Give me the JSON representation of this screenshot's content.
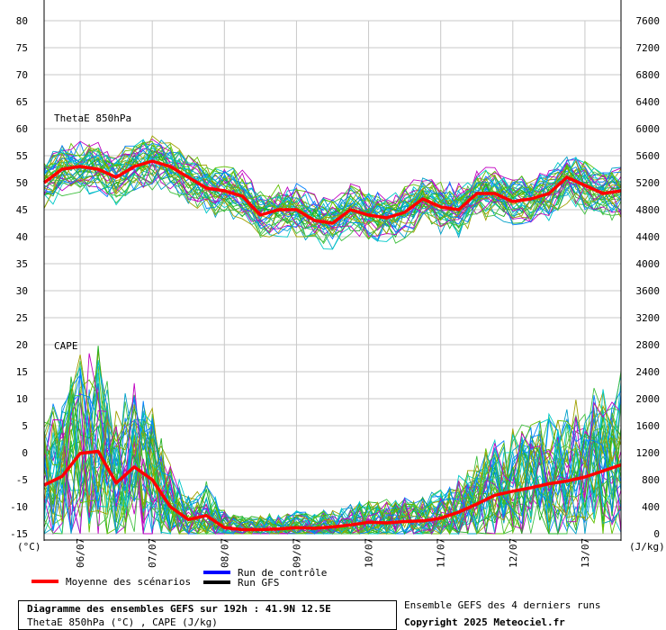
{
  "chart_data": {
    "type": "line",
    "title": "Diagramme des ensembles GEFS sur 192h : 41.9N 12.5E",
    "subtitle": "ThetaE 850hPa (°C) , CAPE (J/kg)",
    "left_axis": {
      "unit": "(°C)",
      "ticks": [
        -15,
        -10,
        -5,
        0,
        5,
        10,
        15,
        20,
        25,
        30,
        35,
        40,
        45,
        50,
        55,
        60,
        65,
        70,
        75,
        80
      ],
      "ylim": [
        -15,
        80
      ]
    },
    "right_axis": {
      "unit": "(J/kg)",
      "ticks": [
        0,
        400,
        800,
        1200,
        1600,
        2000,
        2400,
        2800,
        3200,
        3600,
        4000,
        4400,
        4800,
        5200,
        5600,
        6000,
        6400,
        6800,
        7200,
        7600
      ],
      "ylim": [
        0,
        7600
      ]
    },
    "x_labels": [
      "06/07",
      "07/07",
      "08/07",
      "09/07",
      "10/07",
      "11/07",
      "12/07",
      "13/07"
    ],
    "x_range_h": [
      0,
      192
    ],
    "panel_labels": [
      "ThetaE 850hPa",
      "CAPE"
    ],
    "legend": [
      {
        "name": "Moyenne des scénarios",
        "color": "#ff0000"
      },
      {
        "name": "Run de contrôle",
        "color": "#0000ff"
      },
      {
        "name": "Run GFS",
        "color": "#000000"
      }
    ],
    "member_colors": [
      "#00a0c8",
      "#00c8c8",
      "#20b020",
      "#60c000",
      "#c000c0",
      "#a0a000",
      "#0080ff",
      "#40c040"
    ],
    "series": [
      {
        "name": "Moyenne des scénarios",
        "panel": "ThetaE",
        "unit": "°C",
        "x_hours": [
          0,
          6,
          12,
          18,
          24,
          30,
          36,
          42,
          48,
          54,
          60,
          66,
          72,
          78,
          84,
          90,
          96,
          102,
          108,
          114,
          120,
          126,
          132,
          138,
          144,
          150,
          156,
          162,
          168,
          174,
          180,
          186,
          192
        ],
        "values": [
          50,
          52.5,
          53,
          52.5,
          51,
          53,
          54,
          53,
          51,
          49,
          48.5,
          47.5,
          44,
          45,
          45,
          43,
          42.5,
          45,
          44,
          43.5,
          44.5,
          47,
          45.5,
          45,
          48,
          48,
          46.5,
          47,
          48,
          51,
          49.5,
          48,
          48.5
        ]
      },
      {
        "name": "Moyenne des scénarios",
        "panel": "CAPE",
        "unit": "J/kg",
        "x_hours": [
          0,
          6,
          12,
          18,
          24,
          30,
          36,
          42,
          48,
          54,
          60,
          66,
          72,
          78,
          84,
          90,
          96,
          102,
          108,
          114,
          120,
          126,
          132,
          138,
          144,
          150,
          156,
          162,
          168,
          174,
          180,
          186,
          192
        ],
        "values": [
          720,
          850,
          1190,
          1220,
          750,
          990,
          800,
          400,
          210,
          270,
          90,
          60,
          60,
          70,
          90,
          80,
          100,
          130,
          170,
          160,
          180,
          190,
          230,
          320,
          440,
          570,
          630,
          680,
          740,
          780,
          840,
          930,
          1020
        ]
      }
    ]
  },
  "footer": {
    "title": "Diagramme des ensembles GEFS sur 192h : 41.9N 12.5E",
    "subtitle": "ThetaE 850hPa (°C) , CAPE (J/kg)",
    "runs_note": "Ensemble GEFS des 4 derniers runs",
    "copyright": "Copyright 2025 Meteociel.fr"
  }
}
